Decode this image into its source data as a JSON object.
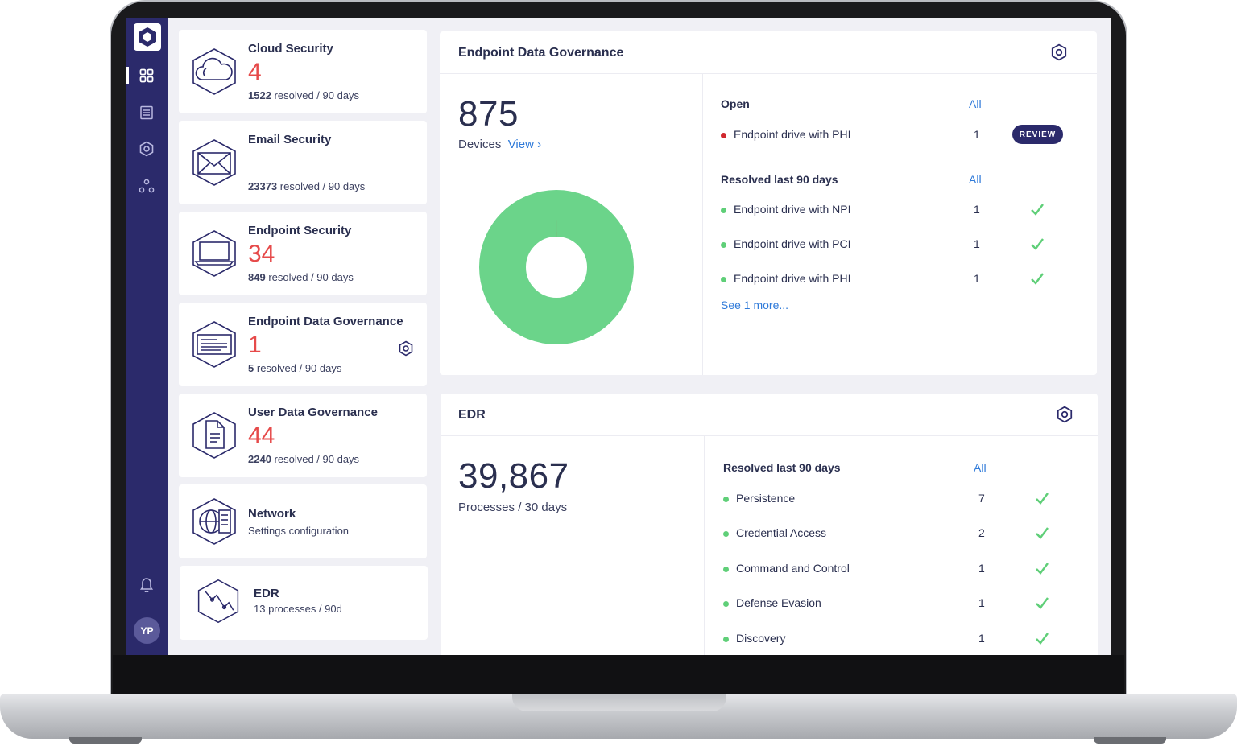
{
  "sidebar": {
    "avatar_initials": "YP",
    "icons": [
      "dashboard-icon",
      "list-icon",
      "hexagon-settings-icon",
      "integrations-icon",
      "bell-icon"
    ]
  },
  "cards": [
    {
      "title": "Cloud Security",
      "count": "4",
      "resolved": "1522",
      "resolved_suffix": "resolved / 90 days",
      "icon": "cloud-icon"
    },
    {
      "title": "Email Security",
      "count": "",
      "resolved": "23373",
      "resolved_suffix": "resolved / 90 days",
      "icon": "envelope-icon"
    },
    {
      "title": "Endpoint Security",
      "count": "34",
      "resolved": "849",
      "resolved_suffix": "resolved / 90 days",
      "icon": "laptop-icon"
    },
    {
      "title": "Endpoint Data Governance",
      "count": "1",
      "resolved": "5",
      "resolved_suffix": "resolved / 90 days",
      "icon": "document-screen-icon"
    },
    {
      "title": "User Data Governance",
      "count": "44",
      "resolved": "2240",
      "resolved_suffix": "resolved / 90 days",
      "icon": "file-icon"
    },
    {
      "title": "Network",
      "subtitle": "Settings configuration",
      "icon": "network-icon"
    },
    {
      "title": "EDR",
      "subtitle": "13 processes / 90d",
      "icon": "edr-icon"
    }
  ],
  "edg_panel": {
    "title": "Endpoint Data Governance",
    "big_number": "875",
    "big_label": "Devices",
    "view_link": "View ›",
    "open_heading": "Open",
    "open_all": "All",
    "open_items": [
      {
        "label": "Endpoint drive with PHI",
        "count": "1",
        "action": "REVIEW",
        "status_color": "#d0282e"
      }
    ],
    "resolved_heading": "Resolved last 90 days",
    "resolved_all": "All",
    "resolved_items": [
      {
        "label": "Endpoint drive with NPI",
        "count": "1"
      },
      {
        "label": "Endpoint drive with PCI",
        "count": "1"
      },
      {
        "label": "Endpoint drive with PHI",
        "count": "1"
      }
    ],
    "see_more": "See 1 more..."
  },
  "edr_panel": {
    "title": "EDR",
    "big_number": "39,867",
    "big_label": "Processes / 30 days",
    "resolved_heading": "Resolved last 90 days",
    "resolved_all": "All",
    "resolved_items": [
      {
        "label": "Persistence",
        "count": "7"
      },
      {
        "label": "Credential Access",
        "count": "2"
      },
      {
        "label": "Command and Control",
        "count": "1"
      },
      {
        "label": "Defense Evasion",
        "count": "1"
      },
      {
        "label": "Discovery",
        "count": "1"
      }
    ]
  },
  "colors": {
    "sidebar": "#2b2a6b",
    "alert_red": "#e64a4a",
    "ok_green": "#5fcf78",
    "link_blue": "#2f7ad9",
    "donut_green": "#6bd48a",
    "donut_red": "#d0282e"
  },
  "donut": {
    "segments": [
      {
        "value": 874,
        "color": "#6bd48a"
      },
      {
        "value": 1,
        "color": "#d0282e"
      }
    ]
  }
}
